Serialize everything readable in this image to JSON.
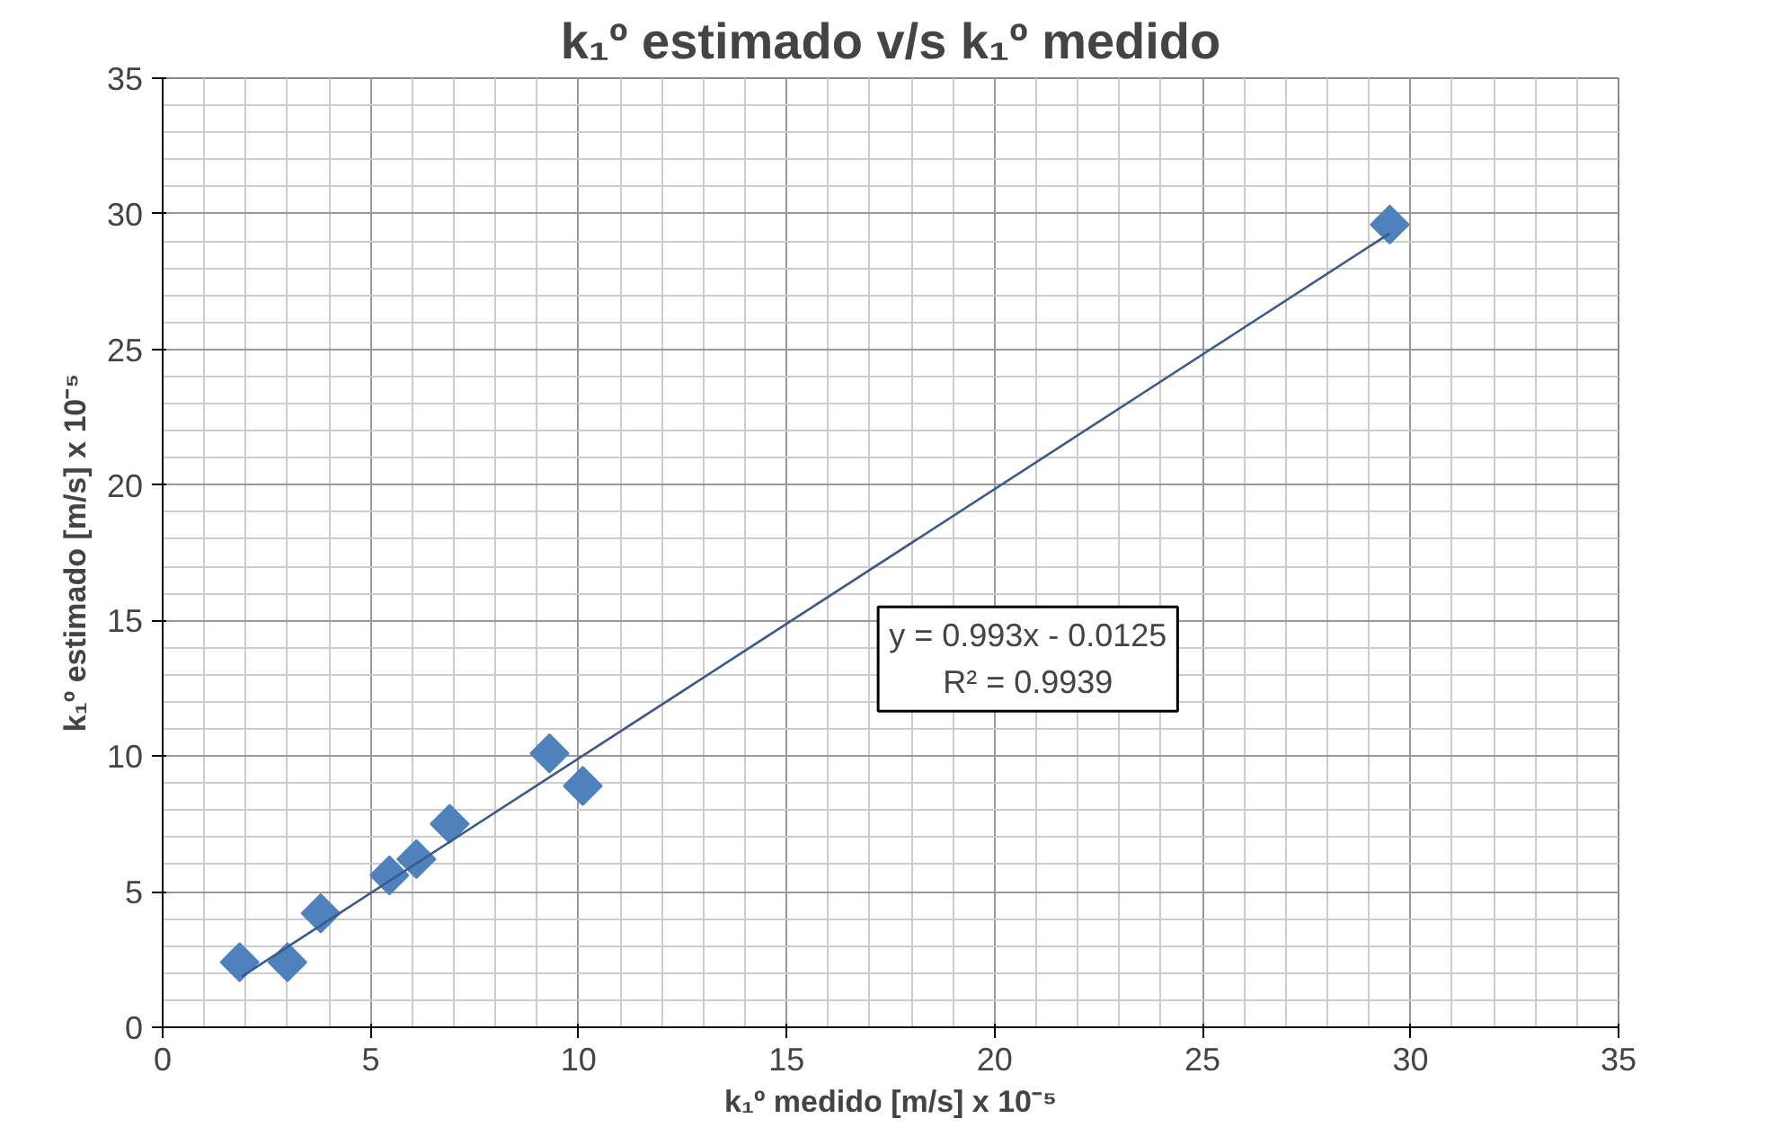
{
  "chart_data": {
    "type": "scatter",
    "title": "k₁º estimado v/s k₁º medido",
    "xlabel": "k₁º medido [m/s] x 10⁻⁵",
    "ylabel": "k₁º estimado [m/s] x 10⁻⁵",
    "series": [
      {
        "color": "#4f81bd",
        "marker": "diamond",
        "x": [
          1.85,
          3.0,
          3.8,
          5.45,
          6.1,
          6.9,
          9.3,
          10.1,
          29.5
        ],
        "values": [
          2.4,
          2.4,
          4.2,
          5.6,
          6.2,
          7.5,
          10.1,
          8.9,
          29.6
        ]
      },
      {
        "type": "line",
        "color": "#3a5a8c",
        "x": [
          1.9,
          29.5
        ],
        "values": [
          1.87,
          29.28
        ]
      }
    ],
    "annotations": [
      "y = 0.993x - 0.0125",
      "R² = 0.9939"
    ],
    "xlim": [
      0,
      35
    ],
    "ylim": [
      0,
      35
    ],
    "xticks": [
      0,
      5,
      10,
      15,
      20,
      25,
      30,
      35
    ],
    "yticks": [
      0,
      5,
      10,
      15,
      20,
      25,
      30,
      35
    ],
    "grid": true
  }
}
